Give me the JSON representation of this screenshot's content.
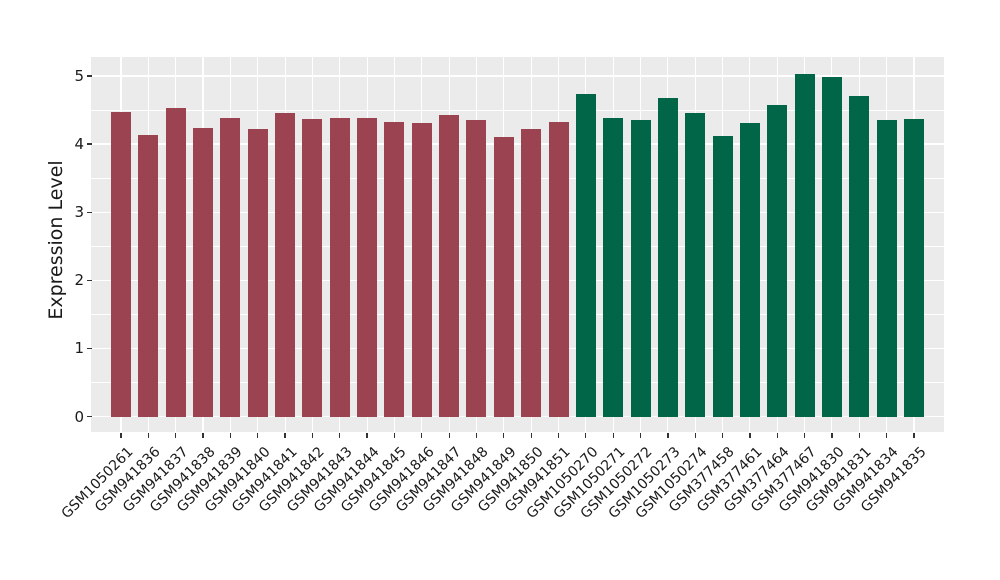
{
  "figure": {
    "background": "#ffffff",
    "panel_background": "#ebebeb",
    "grid_color": "#ffffff",
    "axis_text_color": "#1a1a1a",
    "tick_mark_color": "#333333"
  },
  "chart_data": {
    "type": "bar",
    "title": "",
    "xlabel": "",
    "ylabel": "Expression Level",
    "ylim": [
      0,
      5.3
    ],
    "yticks": [
      0,
      1,
      2,
      3,
      4,
      5
    ],
    "grid": "major-white-and-minor-white-on-gray-panel",
    "legend": "none",
    "x_tick_rotation_deg": 45,
    "group_colors": {
      "group-1": "#9b4351",
      "group-2": "#006647"
    },
    "bars": [
      {
        "label": "GSM1050261",
        "value": 4.47,
        "group": "group-1"
      },
      {
        "label": "GSM941836",
        "value": 4.13,
        "group": "group-1"
      },
      {
        "label": "GSM941837",
        "value": 4.53,
        "group": "group-1"
      },
      {
        "label": "GSM941838",
        "value": 4.23,
        "group": "group-1"
      },
      {
        "label": "GSM941839",
        "value": 4.38,
        "group": "group-1"
      },
      {
        "label": "GSM941840",
        "value": 4.22,
        "group": "group-1"
      },
      {
        "label": "GSM941841",
        "value": 4.46,
        "group": "group-1"
      },
      {
        "label": "GSM941842",
        "value": 4.37,
        "group": "group-1"
      },
      {
        "label": "GSM941843",
        "value": 4.38,
        "group": "group-1"
      },
      {
        "label": "GSM941844",
        "value": 4.38,
        "group": "group-1"
      },
      {
        "label": "GSM941845",
        "value": 4.33,
        "group": "group-1"
      },
      {
        "label": "GSM941846",
        "value": 4.31,
        "group": "group-1"
      },
      {
        "label": "GSM941847",
        "value": 4.43,
        "group": "group-1"
      },
      {
        "label": "GSM941848",
        "value": 4.35,
        "group": "group-1"
      },
      {
        "label": "GSM941849",
        "value": 4.11,
        "group": "group-1"
      },
      {
        "label": "GSM941850",
        "value": 4.22,
        "group": "group-1"
      },
      {
        "label": "GSM941851",
        "value": 4.32,
        "group": "group-1"
      },
      {
        "label": "GSM1050270",
        "value": 4.74,
        "group": "group-2"
      },
      {
        "label": "GSM1050271",
        "value": 4.38,
        "group": "group-2"
      },
      {
        "label": "GSM1050272",
        "value": 4.36,
        "group": "group-2"
      },
      {
        "label": "GSM1050273",
        "value": 4.68,
        "group": "group-2"
      },
      {
        "label": "GSM1050274",
        "value": 4.45,
        "group": "group-2"
      },
      {
        "label": "GSM377458",
        "value": 4.12,
        "group": "group-2"
      },
      {
        "label": "GSM377461",
        "value": 4.31,
        "group": "group-2"
      },
      {
        "label": "GSM377464",
        "value": 4.57,
        "group": "group-2"
      },
      {
        "label": "GSM377467",
        "value": 5.03,
        "group": "group-2"
      },
      {
        "label": "GSM941830",
        "value": 4.99,
        "group": "group-2"
      },
      {
        "label": "GSM941831",
        "value": 4.7,
        "group": "group-2"
      },
      {
        "label": "GSM941834",
        "value": 4.35,
        "group": "group-2"
      },
      {
        "label": "GSM941835",
        "value": 4.37,
        "group": "group-2"
      }
    ]
  }
}
